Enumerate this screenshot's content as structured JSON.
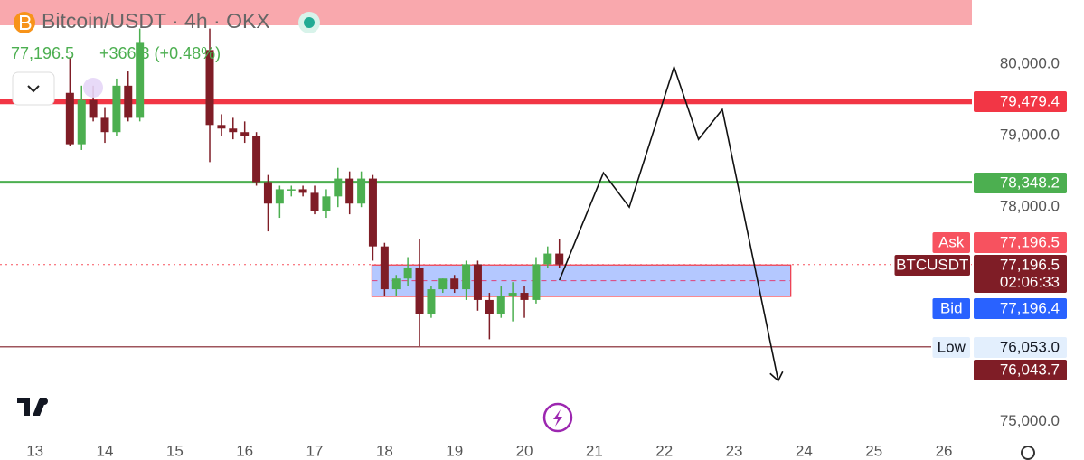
{
  "chart_data": {
    "type": "candlestick",
    "title": "Bitcoin/USDT · 4h · OKX",
    "price": "77,196.5",
    "change": "+366.3 (+0.48%)",
    "countdown": "02:06:33",
    "up_color": "#4caf50",
    "down_color": "#7f1d26",
    "xlim": [
      12.5,
      26.4
    ],
    "xticks": [
      13,
      14,
      15,
      16,
      17,
      18,
      19,
      20,
      21,
      22,
      23,
      24,
      25,
      26
    ],
    "ylim": [
      74700,
      80900
    ],
    "yticks": [
      {
        "value": 80000,
        "label": "80,000.0"
      },
      {
        "value": 79000,
        "label": "79,000.0"
      },
      {
        "value": 78000,
        "label": "78,000.0"
      },
      {
        "value": 75000,
        "label": "75,000.0"
      }
    ],
    "x": [
      13.5,
      13.667,
      13.833,
      14,
      14.167,
      14.333,
      14.5,
      15.5,
      15.667,
      15.833,
      16,
      16.167,
      16.333,
      16.5,
      16.667,
      16.833,
      17,
      17.167,
      17.333,
      17.5,
      17.667,
      17.833,
      18,
      18.167,
      18.333,
      18.5,
      18.667,
      18.833,
      19,
      19.167,
      19.333,
      19.5,
      19.667,
      19.833,
      20,
      20.167,
      20.333,
      20.5
    ],
    "open": [
      79600,
      78880,
      79500,
      79250,
      79050,
      79700,
      79250,
      80200,
      79150,
      79100,
      79050,
      79000,
      78350,
      78050,
      78250,
      78250,
      78200,
      77950,
      78150,
      78400,
      78050,
      78400,
      77450,
      76850,
      77000,
      77150,
      76500,
      76850,
      77000,
      76850,
      77200,
      76700,
      76500,
      76750,
      76800,
      76700,
      77200,
      77350
    ],
    "high": [
      80100,
      79700,
      79700,
      79400,
      79800,
      79900,
      80500,
      80500,
      79300,
      79250,
      79200,
      79050,
      78450,
      78300,
      78300,
      78300,
      78300,
      78250,
      78550,
      78500,
      78500,
      78450,
      77500,
      77050,
      77300,
      77550,
      76900,
      77000,
      77050,
      77250,
      77250,
      76800,
      76900,
      76950,
      76900,
      77300,
      77450,
      77550
    ],
    "low": [
      78850,
      78800,
      79200,
      78900,
      79000,
      79200,
      79200,
      78630,
      79000,
      78950,
      78900,
      78300,
      77660,
      77850,
      78150,
      78150,
      77900,
      77850,
      78000,
      77900,
      78000,
      77250,
      76750,
      76750,
      76900,
      76053,
      76450,
      76800,
      76800,
      76700,
      76550,
      76150,
      76450,
      76400,
      76450,
      76650,
      77150,
      77150
    ],
    "close": [
      78880,
      79500,
      79250,
      79050,
      79700,
      79250,
      80300,
      79150,
      79100,
      79050,
      79000,
      78350,
      78050,
      78250,
      78250,
      78200,
      77950,
      78150,
      78400,
      78050,
      78400,
      77450,
      76850,
      77000,
      77150,
      76500,
      76850,
      77000,
      76850,
      77200,
      76700,
      76500,
      76750,
      76800,
      76700,
      77200,
      77350,
      77196.5
    ],
    "zone": {
      "top": 77190,
      "bottom": 76750,
      "x": [
        17.82,
        23.81
      ]
    },
    "projection": {
      "x": [
        20.5,
        21.13,
        21.5,
        22.14,
        22.49,
        22.83,
        23.63
      ],
      "y": [
        76975,
        78481,
        78000,
        79962,
        78949,
        79367,
        75570
      ]
    },
    "price_labels": [
      {
        "value": 79479.4,
        "label": "79,479.4",
        "color": "#f23645"
      },
      {
        "value": 78348.2,
        "label": "78,348.2",
        "color": "#4caf50"
      },
      {
        "value": 77196.5,
        "label": "77,196.5",
        "color": "#f7525f",
        "tag": "Ask"
      },
      {
        "value": 77196.5,
        "label": "77,196.5",
        "color": "#7f1d26",
        "tag": "BTCUSDT"
      },
      {
        "value": 77196.4,
        "label": "77,196.4",
        "color": "#2962ff",
        "tag": "Bid"
      },
      {
        "value": 76053.0,
        "label": "76,053.0",
        "color": "#e3effd",
        "tag": "Low"
      },
      {
        "value": 76043.7,
        "label": "76,043.7",
        "color": "#7f1d26"
      }
    ]
  }
}
